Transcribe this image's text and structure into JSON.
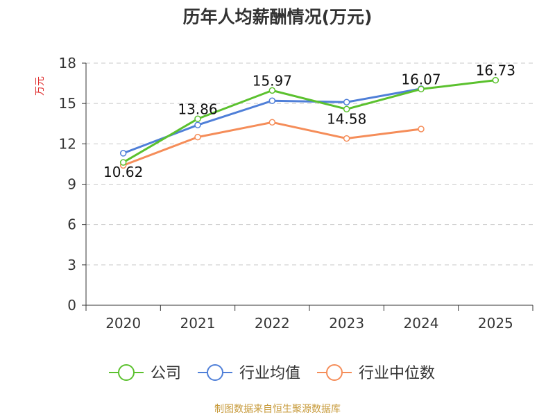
{
  "chart_data": {
    "type": "line",
    "title": "历年人均薪酬情况(万元)",
    "ylabel": "万元",
    "xlabel": "",
    "categories": [
      "2020",
      "2021",
      "2022",
      "2023",
      "2024",
      "2025"
    ],
    "ylim": [
      0,
      18
    ],
    "yticks": [
      "0",
      "3",
      "6",
      "9",
      "12",
      "15",
      "18"
    ],
    "grid": true,
    "legend_position": "bottom",
    "series": [
      {
        "name": "公司",
        "color": "#5bc12e",
        "values": [
          10.62,
          13.86,
          15.97,
          14.58,
          16.07,
          16.73
        ],
        "labels": [
          "10.62",
          "13.86",
          "15.97",
          "14.58",
          "16.07",
          "16.73"
        ]
      },
      {
        "name": "行业均值",
        "color": "#4f7fd8",
        "values": [
          11.3,
          13.4,
          15.2,
          15.1,
          16.1,
          null
        ]
      },
      {
        "name": "行业中位数",
        "color": "#f58d59",
        "values": [
          10.4,
          12.5,
          13.6,
          12.4,
          13.1,
          null
        ]
      }
    ],
    "source": "制图数据来自恒生聚源数据库",
    "ylabel_color": "#e03131",
    "source_color": "#c79a3a"
  }
}
